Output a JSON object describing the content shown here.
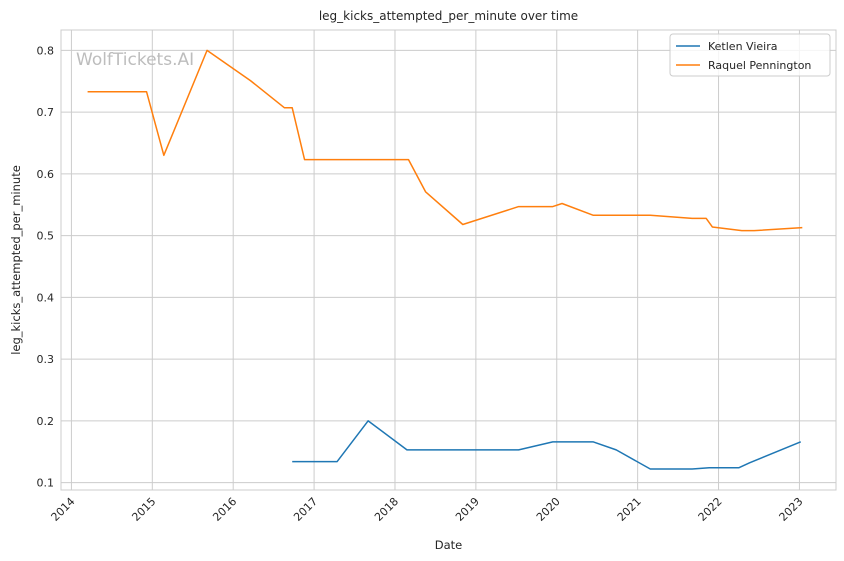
{
  "chart_data": {
    "type": "line",
    "title": "leg_kicks_attempted_per_minute over time",
    "xlabel": "Date",
    "ylabel": "leg_kicks_attempted_per_minute",
    "watermark": "WolfTickets.AI",
    "x_ticks": [
      "2014",
      "2015",
      "2016",
      "2017",
      "2018",
      "2019",
      "2020",
      "2021",
      "2022",
      "2023"
    ],
    "y_ticks": [
      "0.1",
      "0.2",
      "0.3",
      "0.4",
      "0.5",
      "0.6",
      "0.7",
      "0.8"
    ],
    "xlim": [
      "2013-11-15",
      "2023-06-15"
    ],
    "ylim": [
      0.088,
      0.833
    ],
    "grid": true,
    "legend_position": "top-right",
    "series": [
      {
        "name": "Ketlen Vieira",
        "color": "#1f77b4",
        "points": [
          [
            "2016-09-24",
            0.134
          ],
          [
            "2017-04-15",
            0.134
          ],
          [
            "2017-09-02",
            0.2
          ],
          [
            "2018-02-24",
            0.153
          ],
          [
            "2019-07-13",
            0.153
          ],
          [
            "2019-12-14",
            0.166
          ],
          [
            "2020-06-13",
            0.166
          ],
          [
            "2020-09-26",
            0.153
          ],
          [
            "2021-02-27",
            0.122
          ],
          [
            "2021-09-04",
            0.122
          ],
          [
            "2021-11-20",
            0.124
          ],
          [
            "2022-04-02",
            0.124
          ],
          [
            "2022-05-21",
            0.132
          ],
          [
            "2023-01-07",
            0.166
          ]
        ]
      },
      {
        "name": "Raquel Pennington",
        "color": "#ff7f0e",
        "points": [
          [
            "2014-03-15",
            0.733
          ],
          [
            "2014-12-06",
            0.733
          ],
          [
            "2015-02-22",
            0.63
          ],
          [
            "2015-09-05",
            0.8
          ],
          [
            "2016-03-19",
            0.751
          ],
          [
            "2016-08-20",
            0.707
          ],
          [
            "2016-09-24",
            0.707
          ],
          [
            "2016-11-19",
            0.623
          ],
          [
            "2018-03-03",
            0.623
          ],
          [
            "2018-05-19",
            0.571
          ],
          [
            "2018-11-03",
            0.518
          ],
          [
            "2019-07-13",
            0.547
          ],
          [
            "2019-12-14",
            0.547
          ],
          [
            "2020-01-25",
            0.552
          ],
          [
            "2020-06-13",
            0.533
          ],
          [
            "2021-02-27",
            0.533
          ],
          [
            "2021-09-04",
            0.528
          ],
          [
            "2021-11-06",
            0.528
          ],
          [
            "2021-12-04",
            0.514
          ],
          [
            "2022-04-16",
            0.508
          ],
          [
            "2022-06-11",
            0.508
          ],
          [
            "2023-01-14",
            0.513
          ]
        ]
      }
    ]
  }
}
